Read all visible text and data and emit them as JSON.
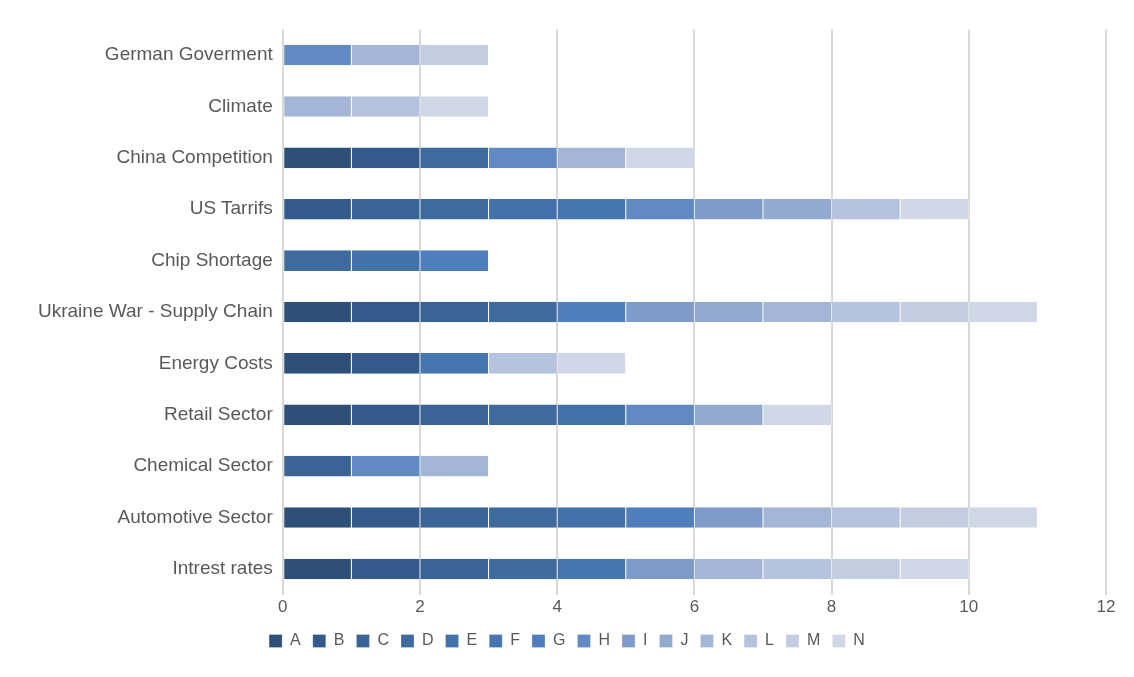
{
  "chart_data": {
    "type": "bar",
    "orientation": "horizontal",
    "stacked": true,
    "legend": "bottom",
    "grid": "x",
    "xlim": [
      0,
      12
    ],
    "xticks": [
      0,
      2,
      4,
      6,
      8,
      10,
      12
    ],
    "categories": [
      "German Goverment",
      "Climate",
      "China Competition",
      "US Tarrifs",
      "Chip Shortage",
      "Ukraine War - Supply Chain",
      "Energy Costs",
      "Retail Sector",
      "Chemical Sector",
      "Automotive Sector",
      "Intrest rates"
    ],
    "series": [
      {
        "name": "A",
        "color": "#2e5078",
        "values": [
          0,
          0,
          1,
          0,
          0,
          1,
          1,
          1,
          0,
          1,
          1
        ]
      },
      {
        "name": "B",
        "color": "#335a8a",
        "values": [
          0,
          0,
          1,
          1,
          0,
          1,
          1,
          1,
          0,
          1,
          1
        ]
      },
      {
        "name": "C",
        "color": "#3a6396",
        "values": [
          0,
          0,
          0,
          1,
          0,
          1,
          0,
          1,
          1,
          1,
          1
        ]
      },
      {
        "name": "D",
        "color": "#3e6a9e",
        "values": [
          0,
          0,
          1,
          1,
          1,
          1,
          0,
          1,
          0,
          1,
          1
        ]
      },
      {
        "name": "E",
        "color": "#4371aa",
        "values": [
          0,
          0,
          0,
          1,
          1,
          0,
          0,
          1,
          0,
          1,
          0
        ]
      },
      {
        "name": "F",
        "color": "#4676b0",
        "values": [
          0,
          0,
          0,
          1,
          0,
          0,
          1,
          0,
          0,
          0,
          1
        ]
      },
      {
        "name": "G",
        "color": "#4e7fbc",
        "values": [
          0,
          0,
          0,
          0,
          1,
          1,
          0,
          0,
          0,
          1,
          0
        ]
      },
      {
        "name": "H",
        "color": "#6189c2",
        "values": [
          1,
          0,
          1,
          1,
          0,
          0,
          0,
          1,
          1,
          0,
          0
        ]
      },
      {
        "name": "I",
        "color": "#7f9cc9",
        "values": [
          0,
          0,
          0,
          1,
          0,
          1,
          0,
          0,
          0,
          1,
          1
        ]
      },
      {
        "name": "J",
        "color": "#92aad0",
        "values": [
          0,
          0,
          0,
          1,
          0,
          1,
          0,
          1,
          0,
          0,
          0
        ]
      },
      {
        "name": "K",
        "color": "#a4b6d6",
        "values": [
          1,
          1,
          1,
          0,
          0,
          1,
          0,
          0,
          1,
          1,
          1
        ]
      },
      {
        "name": "L",
        "color": "#b5c3df",
        "values": [
          0,
          1,
          0,
          1,
          0,
          1,
          1,
          0,
          0,
          1,
          1
        ]
      },
      {
        "name": "M",
        "color": "#c3cde2",
        "values": [
          1,
          0,
          0,
          0,
          0,
          1,
          0,
          0,
          0,
          1,
          1
        ]
      },
      {
        "name": "N",
        "color": "#d0d8e8",
        "values": [
          0,
          1,
          1,
          1,
          0,
          1,
          1,
          1,
          0,
          1,
          1
        ]
      }
    ]
  }
}
